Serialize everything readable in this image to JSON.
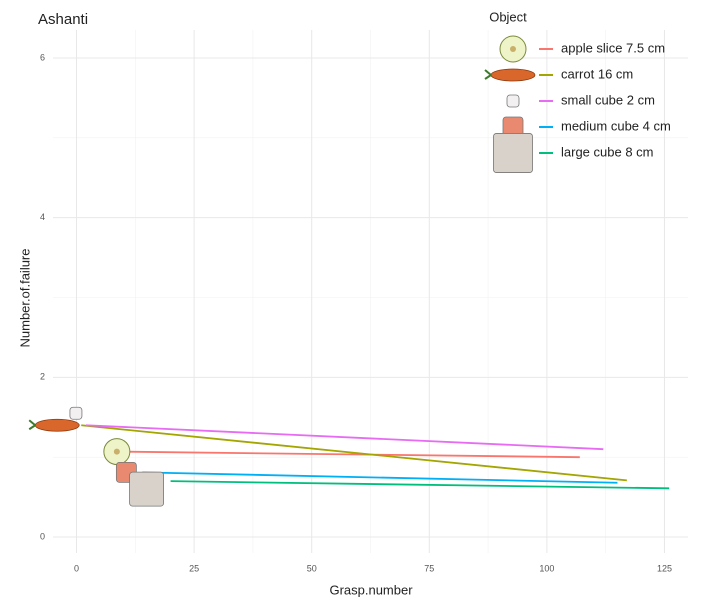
{
  "chart_data": {
    "type": "line",
    "title": "Ashanti",
    "x_label": "Grasp.number",
    "y_label": "Number.of.failure",
    "legend_title": "Object",
    "series": [
      {
        "name": "apple slice 7.5 cm",
        "color": "#F8766D",
        "x": [
          9,
          107
        ],
        "values": [
          1.07,
          1.0
        ]
      },
      {
        "name": "carrot 16 cm",
        "color": "#A3A500",
        "x": [
          1,
          117
        ],
        "values": [
          1.4,
          0.71
        ]
      },
      {
        "name": "small cube 2 cm",
        "color": "#E76BF3",
        "x": [
          2,
          112
        ],
        "values": [
          1.4,
          1.1
        ]
      },
      {
        "name": "medium cube 4 cm",
        "color": "#00B0F6",
        "x": [
          14,
          115
        ],
        "values": [
          0.81,
          0.68
        ]
      },
      {
        "name": "large cube 8 cm",
        "color": "#00BF7D",
        "x": [
          20,
          126
        ],
        "values": [
          0.7,
          0.61
        ]
      }
    ],
    "xlim": [
      -5,
      130
    ],
    "xticks": [
      0,
      25,
      50,
      75,
      100,
      125
    ],
    "ylim": [
      -0.2,
      6.35
    ],
    "yticks": [
      0,
      2,
      4,
      6
    ],
    "grid": true
  }
}
